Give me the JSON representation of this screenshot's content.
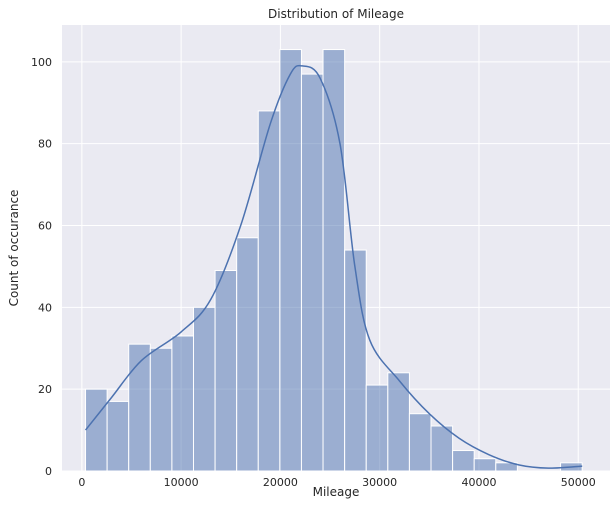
{
  "chart_data": {
    "type": "bar",
    "title": "Distribution of Mileage",
    "xlabel": "Mileage",
    "ylabel": "Count of occurance",
    "xlim": [
      -2000,
      53200
    ],
    "ylim": [
      0,
      109
    ],
    "xticks": [
      0,
      10000,
      20000,
      30000,
      40000,
      50000
    ],
    "yticks": [
      0,
      20,
      40,
      60,
      80,
      100
    ],
    "grid": true,
    "bin_start": 370,
    "bin_width": 2175,
    "values": [
      20,
      17,
      31,
      30,
      33,
      40,
      49,
      57,
      88,
      103,
      97,
      103,
      54,
      21,
      24,
      14,
      11,
      5,
      3,
      2,
      0,
      0,
      2
    ],
    "kde": {
      "x": [
        370,
        3000,
        6000,
        10000,
        13000,
        16000,
        19000,
        21000,
        22200,
        24000,
        26000,
        27500,
        29000,
        32000,
        35000,
        38000,
        41000,
        44000,
        47000,
        50400
      ],
      "y": [
        10,
        18,
        27,
        34,
        42,
        60,
        85,
        97,
        99,
        96,
        80,
        50,
        32,
        22,
        14,
        8,
        4,
        1.5,
        0.7,
        1.2
      ]
    },
    "colors": {
      "bar": "#4c72b0",
      "bar_opacity": 0.5,
      "line": "#4c72b0",
      "background": "#eaeaf2",
      "grid": "#ffffff"
    }
  }
}
